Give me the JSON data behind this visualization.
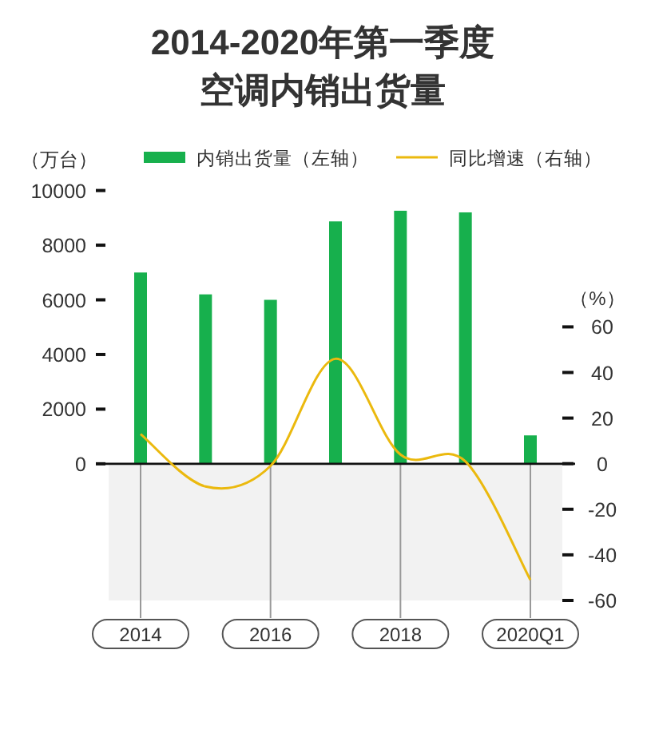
{
  "chart_data": {
    "type": "bar",
    "title": "2014-2020年第一季度空调内销出货量",
    "ylabel": "（万台）",
    "y2label": "（%）",
    "categories": [
      "2014",
      null,
      "2016",
      null,
      "2018",
      null,
      "2020Q1"
    ],
    "series": [
      {
        "name": "内销出货量（左轴）",
        "color": "#17b04d",
        "values": [
          7000,
          6200,
          6000,
          8870,
          9260,
          9200,
          1040
        ]
      },
      {
        "name": "同比增速（右轴）",
        "type": "line",
        "axis": "y2",
        "color": "#ebb90e",
        "values": [
          13,
          -10,
          -1,
          46,
          4,
          1,
          -51
        ]
      }
    ],
    "ylim": [
      -5000,
      10000
    ],
    "yticks": [
      0,
      2000,
      4000,
      6000,
      8000,
      10000
    ],
    "y2lim": [
      -60,
      60
    ],
    "y2ticks": [
      -60,
      -40,
      -20,
      0,
      20,
      40,
      60
    ],
    "bands": [
      {
        "axis": "y2",
        "from": -60,
        "to": 0,
        "color": "#f2f2f2"
      }
    ],
    "legend": "top"
  }
}
